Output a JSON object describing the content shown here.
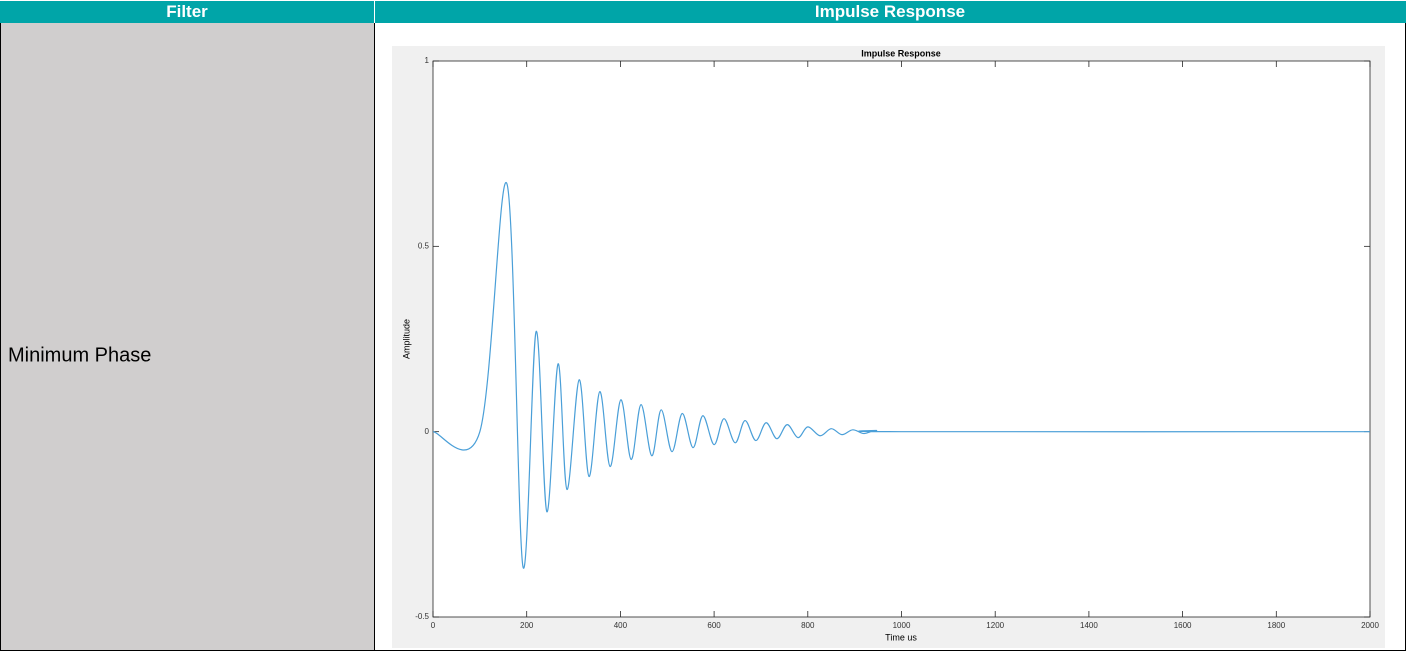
{
  "table": {
    "header": [
      "Filter",
      "Impulse Response"
    ],
    "rows": [
      [
        "Minimum Phase"
      ]
    ]
  },
  "chart_data": {
    "type": "line",
    "title": "Impulse Response",
    "xlabel": "Time us",
    "ylabel": "Amplitude",
    "x": [
      0,
      100,
      158,
      192,
      220,
      243,
      267,
      286,
      312,
      333,
      356,
      378,
      401,
      423,
      444,
      467,
      487,
      510,
      532,
      555,
      576,
      600,
      621,
      645,
      666,
      689,
      711,
      734,
      756,
      779,
      800,
      826,
      850,
      873,
      896,
      920,
      946,
      1000,
      2000
    ],
    "values": [
      0,
      0,
      0.668,
      -0.364,
      0.27,
      -0.216,
      0.183,
      -0.156,
      0.14,
      -0.121,
      0.108,
      -0.094,
      0.086,
      -0.075,
      0.073,
      -0.065,
      0.059,
      -0.054,
      0.049,
      -0.043,
      0.043,
      -0.035,
      0.035,
      -0.03,
      0.03,
      -0.024,
      0.024,
      -0.019,
      0.019,
      -0.016,
      0.013,
      -0.011,
      0.008,
      -0.008,
      0.005,
      -0.005,
      0.003,
      0,
      0
    ],
    "color": "#4a9fd8",
    "xlim": [
      0,
      2000
    ],
    "xticks": [
      0,
      200,
      400,
      600,
      800,
      1000,
      1200,
      1400,
      1600,
      1800,
      2000
    ],
    "ylim": [
      -0.5,
      1
    ],
    "yticks": [
      -0.5,
      0,
      0.5,
      1
    ],
    "grid": false
  }
}
